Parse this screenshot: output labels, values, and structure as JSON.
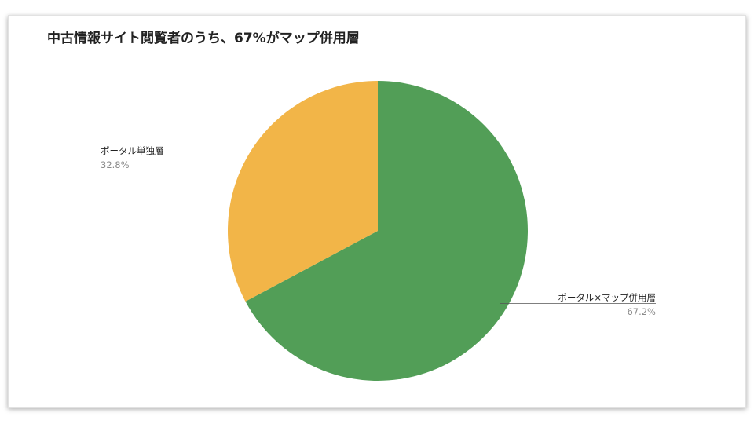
{
  "chart_data": {
    "type": "pie",
    "title": "中古情報サイト閲覧者のうち、67%がマップ併用層",
    "slices": [
      {
        "label": "ポータル×マップ併用層",
        "value": 67.2,
        "value_label": "67.2%",
        "color": "#529e57"
      },
      {
        "label": "ポータル単独層",
        "value": 32.8,
        "value_label": "32.8%",
        "color": "#f2b548"
      }
    ],
    "start_angle_deg": 0,
    "direction": "clockwise",
    "legend": "none"
  }
}
